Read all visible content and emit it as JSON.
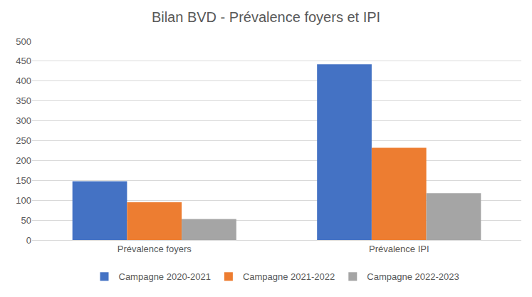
{
  "chart_data": {
    "type": "bar",
    "title": "Bilan BVD - Prévalence foyers et IPI",
    "categories": [
      "Prévalence foyers",
      "Prévalence IPI"
    ],
    "series": [
      {
        "name": "Campagne 2020-2021",
        "color": "#4472c4",
        "values": [
          148,
          442
        ]
      },
      {
        "name": "Campagne 2021-2022",
        "color": "#ed7d31",
        "values": [
          95,
          232
        ]
      },
      {
        "name": "Campagne 2022-2023",
        "color": "#a5a5a5",
        "values": [
          53,
          118
        ]
      }
    ],
    "ylim": [
      0,
      500
    ],
    "yticks": [
      0,
      50,
      100,
      150,
      200,
      250,
      300,
      350,
      400,
      450,
      500
    ],
    "grid": true,
    "legend": "bottom"
  }
}
